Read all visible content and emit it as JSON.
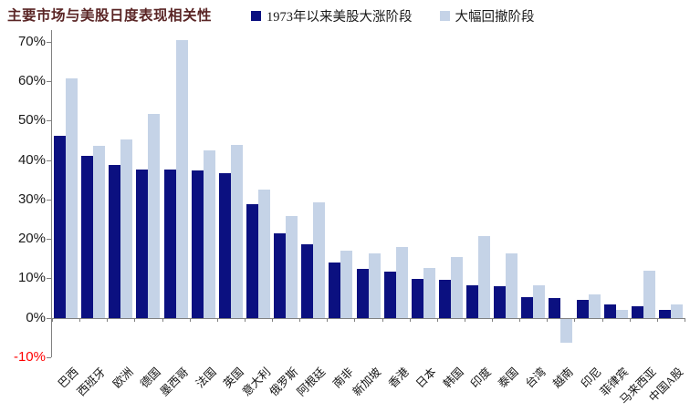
{
  "title": "主要市场与美股日度表现相关性",
  "legend": [
    {
      "label": "1973年以来美股大涨阶段",
      "color": "#0B1080"
    },
    {
      "label": "大幅回撤阶段",
      "color": "#C5D3E7"
    }
  ],
  "colors": {
    "title": "#5A2525",
    "axis": "#808080",
    "tick_label": "#1A1A1A",
    "negative_tick_label": "#FF0000",
    "background": "#FFFFFF"
  },
  "chart_data": {
    "type": "bar",
    "title": "主要市场与美股日度表现相关性",
    "categories": [
      "巴西",
      "西班牙",
      "欧洲",
      "德国",
      "墨西哥",
      "法国",
      "英国",
      "意大利",
      "俄罗斯",
      "阿根廷",
      "南非",
      "新加坡",
      "香港",
      "日本",
      "韩国",
      "印度",
      "泰国",
      "台湾",
      "越南",
      "印尼",
      "菲律宾",
      "马来西亚",
      "中国A股"
    ],
    "series": [
      {
        "name": "1973年以来美股大涨阶段",
        "color": "#0B1080",
        "values": [
          46.2,
          41.2,
          38.8,
          37.7,
          37.7,
          37.4,
          36.8,
          28.8,
          21.5,
          18.7,
          14.0,
          12.6,
          11.7,
          10.0,
          9.6,
          8.3,
          8.2,
          5.3,
          5.0,
          4.7,
          3.4,
          2.9,
          2.0
        ]
      },
      {
        "name": "大幅回撤阶段",
        "color": "#C5D3E7",
        "values": [
          60.8,
          43.7,
          45.2,
          51.9,
          70.4,
          42.5,
          43.9,
          32.6,
          25.9,
          29.4,
          17.0,
          16.5,
          18.0,
          12.8,
          15.4,
          20.9,
          16.5,
          8.4,
          -6.1,
          6.0,
          2.0,
          12.0,
          3.5
        ]
      }
    ],
    "xlabel": "",
    "ylabel": "",
    "ylim": [
      -10,
      73
    ],
    "y_ticks": [
      70,
      60,
      50,
      40,
      30,
      20,
      10,
      0,
      -10
    ],
    "y_tick_suffix": "%",
    "grid": false,
    "legend_position": "top"
  }
}
